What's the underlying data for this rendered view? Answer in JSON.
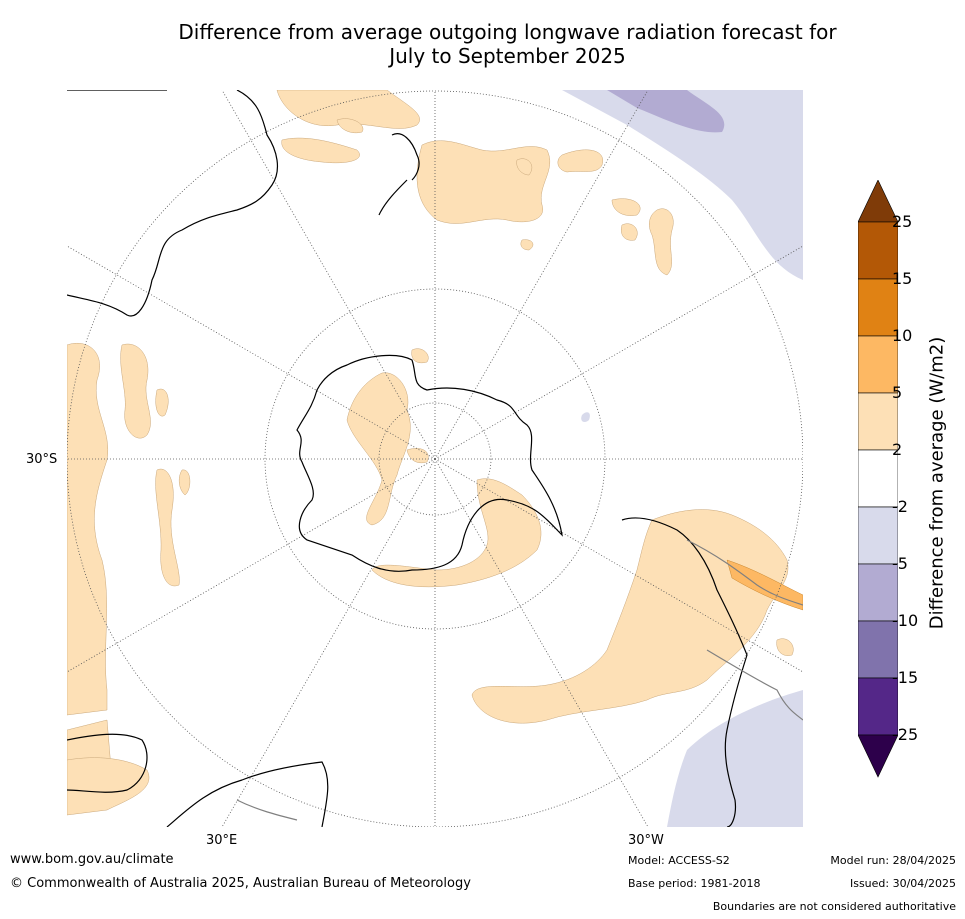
{
  "title": {
    "line1": "Difference from average outgoing longwave radiation forecast for",
    "line2": "July to September 2025"
  },
  "map": {
    "projection": "south polar stereographic",
    "axis_labels": {
      "left": "30°S",
      "bottom_left": "30°E",
      "bottom_right": "30°W"
    },
    "colors": {
      "land_outline": "#000000",
      "borders": "#808080",
      "graticule": "#555555",
      "pos_2_5": "#fde0b6",
      "pos_5_10": "#fdb863",
      "pos_10_15": "#e08214",
      "neg_2_5": "#d8daeb",
      "neg_5_10": "#b2abd2"
    }
  },
  "colorbar": {
    "label": "Difference from average (W/m2)",
    "ticks": [
      "25",
      "15",
      "10",
      "5",
      "2",
      "-2",
      "-5",
      "-10",
      "-15",
      "-25"
    ],
    "colors": [
      "#7f3b08",
      "#b35806",
      "#e08214",
      "#fdb863",
      "#fde0b6",
      "#ffffff",
      "#d8daeb",
      "#b2abd2",
      "#8073ac",
      "#542788",
      "#2d004b"
    ]
  },
  "footer": {
    "url": "www.bom.gov.au/climate",
    "copyright": "© Commonwealth of Australia 2025, Australian Bureau of Meteorology",
    "model": "Model: ACCESS-S2",
    "base_period": "Base period: 1981-2018",
    "model_run": "Model run: 28/04/2025",
    "issued": "Issued: 30/04/2025",
    "disclaimer": "Boundaries are not considered authoritative"
  }
}
